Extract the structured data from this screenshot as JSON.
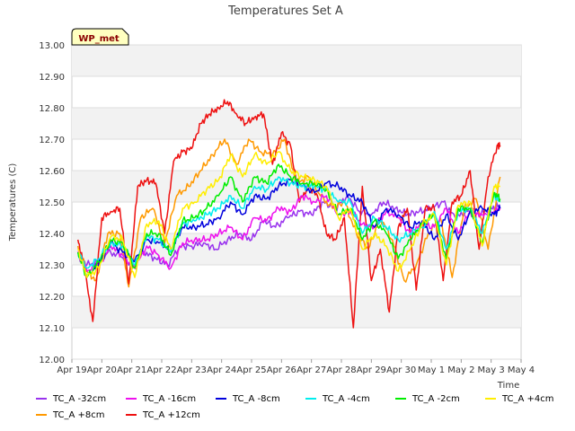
{
  "chart_data": {
    "type": "line",
    "title": "Temperatures Set A",
    "xlabel": "Time",
    "ylabel": "Temperatures (C)",
    "ylim": [
      12.0,
      13.0
    ],
    "yticks": [
      "12.00",
      "12.10",
      "12.20",
      "12.30",
      "12.40",
      "12.50",
      "12.60",
      "12.70",
      "12.80",
      "12.90",
      "13.00"
    ],
    "xticks": [
      "Apr 19",
      "Apr 20",
      "Apr 21",
      "Apr 22",
      "Apr 23",
      "Apr 24",
      "Apr 25",
      "Apr 26",
      "Apr 27",
      "Apr 28",
      "Apr 29",
      "Apr 30",
      "May 1",
      "May 2",
      "May 3",
      "May 4"
    ],
    "grid": true,
    "legend_position": "bottom",
    "station_label": "WP_met",
    "colors": {
      "band": "#ebebeb",
      "plot_bg": "#f2f2f2",
      "station_box": "#ffffc0",
      "station_text": "#8b0000"
    },
    "series": [
      {
        "name": "TC_A -32cm",
        "color": "#9933ee",
        "x": [
          0.2,
          0.5,
          0.9,
          1.2,
          1.6,
          2.0,
          2.4,
          2.8,
          3.2,
          3.6,
          4.0,
          4.4,
          4.8,
          5.2,
          5.6,
          6.0,
          6.4,
          6.8,
          7.2,
          7.6,
          8.0,
          8.4,
          8.8,
          9.2,
          9.6,
          10.0,
          10.4,
          10.8,
          11.2,
          11.6,
          12.0,
          12.4,
          12.8,
          13.2,
          13.6,
          14.0,
          14.3
        ],
        "y": [
          12.33,
          12.3,
          12.31,
          12.34,
          12.33,
          12.3,
          12.34,
          12.32,
          12.3,
          12.36,
          12.36,
          12.37,
          12.35,
          12.38,
          12.4,
          12.38,
          12.44,
          12.42,
          12.45,
          12.47,
          12.46,
          12.5,
          12.48,
          12.52,
          12.47,
          12.46,
          12.5,
          12.48,
          12.46,
          12.47,
          12.48,
          12.5,
          12.45,
          12.47,
          12.46,
          12.48,
          12.49
        ]
      },
      {
        "name": "TC_A +8cm",
        "color": "#ff9900",
        "x": [
          0.2,
          0.5,
          0.8,
          1.2,
          1.6,
          1.9,
          2.3,
          2.7,
          3.1,
          3.5,
          3.9,
          4.3,
          4.7,
          5.1,
          5.5,
          5.9,
          6.3,
          6.7,
          7.1,
          7.5,
          7.9,
          8.3,
          8.7,
          9.1,
          9.5,
          9.9,
          10.3,
          10.7,
          11.1,
          11.5,
          11.9,
          12.3,
          12.7,
          13.1,
          13.5,
          13.9,
          14.3
        ],
        "y": [
          12.36,
          12.28,
          12.25,
          12.4,
          12.4,
          12.23,
          12.45,
          12.48,
          12.37,
          12.52,
          12.55,
          12.6,
          12.65,
          12.7,
          12.62,
          12.7,
          12.66,
          12.65,
          12.7,
          12.56,
          12.58,
          12.52,
          12.48,
          12.5,
          12.4,
          12.35,
          12.45,
          12.38,
          12.25,
          12.3,
          12.4,
          12.45,
          12.26,
          12.48,
          12.51,
          12.35,
          12.58
        ]
      },
      {
        "name": "TC_A +12cm",
        "color": "#ee1111",
        "x": [
          0.2,
          0.4,
          0.7,
          1.0,
          1.3,
          1.6,
          1.9,
          2.2,
          2.5,
          2.8,
          3.1,
          3.4,
          3.7,
          4.0,
          4.3,
          4.6,
          4.9,
          5.2,
          5.5,
          5.8,
          6.1,
          6.4,
          6.7,
          7.0,
          7.3,
          7.6,
          7.9,
          8.2,
          8.5,
          8.8,
          9.1,
          9.4,
          9.7,
          10.0,
          10.3,
          10.6,
          10.9,
          11.2,
          11.5,
          11.8,
          12.1,
          12.4,
          12.7,
          13.0,
          13.3,
          13.6,
          13.9,
          14.2,
          14.3
        ],
        "y": [
          12.38,
          12.3,
          12.12,
          12.45,
          12.47,
          12.48,
          12.24,
          12.55,
          12.57,
          12.56,
          12.4,
          12.63,
          12.66,
          12.67,
          12.75,
          12.78,
          12.8,
          12.82,
          12.78,
          12.75,
          12.77,
          12.78,
          12.62,
          12.72,
          12.68,
          12.5,
          12.55,
          12.52,
          12.4,
          12.38,
          12.45,
          12.1,
          12.55,
          12.25,
          12.35,
          12.15,
          12.42,
          12.48,
          12.22,
          12.48,
          12.48,
          12.25,
          12.5,
          12.52,
          12.6,
          12.35,
          12.58,
          12.68,
          12.68
        ]
      },
      {
        "name": "TC_A -16cm",
        "color": "#ee11ee",
        "x": [
          0.2,
          0.5,
          0.9,
          1.3,
          1.7,
          2.1,
          2.5,
          2.9,
          3.3,
          3.7,
          4.1,
          4.5,
          4.9,
          5.3,
          5.7,
          6.1,
          6.5,
          6.9,
          7.3,
          7.7,
          8.1,
          8.5,
          8.9,
          9.3,
          9.7,
          10.1,
          10.5,
          10.9,
          11.3,
          11.7,
          12.1,
          12.5,
          12.9,
          13.3,
          13.7,
          14.1,
          14.3
        ],
        "y": [
          12.34,
          12.28,
          12.3,
          12.36,
          12.33,
          12.29,
          12.36,
          12.33,
          12.29,
          12.37,
          12.38,
          12.38,
          12.4,
          12.42,
          12.38,
          12.45,
          12.44,
          12.48,
          12.47,
          12.52,
          12.5,
          12.52,
          12.46,
          12.47,
          12.43,
          12.42,
          12.47,
          12.45,
          12.4,
          12.43,
          12.42,
          12.48,
          12.4,
          12.47,
          12.46,
          12.47,
          12.48
        ]
      },
      {
        "name": "TC_A -8cm",
        "color": "#0000dd",
        "x": [
          0.7,
          1.0,
          1.3,
          1.7,
          2.1,
          2.5,
          2.9,
          3.3,
          3.7,
          4.1,
          4.5,
          4.9,
          5.3,
          5.7,
          6.1,
          6.5,
          6.9,
          7.3,
          7.7,
          8.1,
          8.5,
          8.9,
          9.3,
          9.7,
          10.1,
          10.5,
          10.9,
          11.3,
          11.7,
          12.1,
          12.5,
          12.9,
          13.3,
          13.7,
          14.1,
          14.3
        ],
        "y": [
          12.28,
          12.32,
          12.37,
          12.34,
          12.31,
          12.38,
          12.37,
          12.35,
          12.42,
          12.42,
          12.43,
          12.45,
          12.5,
          12.46,
          12.52,
          12.51,
          12.55,
          12.57,
          12.55,
          12.53,
          12.56,
          12.55,
          12.52,
          12.5,
          12.42,
          12.48,
          12.46,
          12.42,
          12.44,
          12.38,
          12.46,
          12.38,
          12.47,
          12.48,
          12.46,
          12.48
        ]
      },
      {
        "name": "TC_A -4cm",
        "color": "#00eeee",
        "x": [
          0.2,
          0.5,
          0.9,
          1.3,
          1.7,
          2.1,
          2.5,
          2.9,
          3.3,
          3.7,
          4.1,
          4.5,
          4.9,
          5.3,
          5.7,
          6.1,
          6.5,
          6.9,
          7.3,
          7.7,
          8.1,
          8.5,
          8.9,
          9.3,
          9.7,
          10.1,
          10.5,
          10.9,
          11.3,
          11.7,
          12.1,
          12.5,
          12.9,
          13.3,
          13.7,
          14.1,
          14.3
        ],
        "y": [
          12.34,
          12.29,
          12.32,
          12.37,
          12.36,
          12.3,
          12.39,
          12.38,
          12.34,
          12.43,
          12.44,
          12.46,
          12.48,
          12.52,
          12.48,
          12.55,
          12.54,
          12.58,
          12.56,
          12.55,
          12.55,
          12.54,
          12.5,
          12.5,
          12.4,
          12.45,
          12.42,
          12.38,
          12.4,
          12.42,
          12.47,
          12.35,
          12.47,
          12.48,
          12.4,
          12.52,
          12.5
        ]
      },
      {
        "name": "TC_A -2cm",
        "color": "#00ee00",
        "x": [
          0.2,
          0.5,
          0.9,
          1.3,
          1.7,
          2.1,
          2.5,
          2.9,
          3.3,
          3.7,
          4.1,
          4.5,
          4.9,
          5.3,
          5.7,
          6.1,
          6.5,
          6.9,
          7.3,
          7.7,
          8.1,
          8.5,
          8.9,
          9.3,
          9.7,
          10.1,
          10.5,
          10.9,
          11.3,
          11.7,
          12.1,
          12.5,
          12.9,
          13.3,
          13.7,
          14.1,
          14.3
        ],
        "y": [
          12.34,
          12.26,
          12.31,
          12.38,
          12.37,
          12.29,
          12.4,
          12.4,
          12.33,
          12.44,
          12.45,
          12.48,
          12.52,
          12.58,
          12.5,
          12.58,
          12.56,
          12.62,
          12.58,
          12.56,
          12.56,
          12.54,
          12.46,
          12.48,
          12.38,
          12.44,
          12.4,
          12.32,
          12.38,
          12.43,
          12.46,
          12.32,
          12.48,
          12.48,
          12.37,
          12.53,
          12.51
        ]
      },
      {
        "name": "TC_A +4cm",
        "color": "#ffee00",
        "x": [
          0.2,
          0.5,
          0.9,
          1.3,
          1.7,
          2.1,
          2.5,
          2.9,
          3.3,
          3.7,
          4.1,
          4.5,
          4.9,
          5.3,
          5.7,
          6.1,
          6.5,
          6.9,
          7.3,
          7.7,
          8.1,
          8.5,
          8.9,
          9.3,
          9.7,
          10.1,
          10.5,
          10.9,
          11.3,
          11.7,
          12.1,
          12.5,
          12.9,
          13.3,
          13.7,
          14.1,
          14.3
        ],
        "y": [
          12.35,
          12.26,
          12.29,
          12.39,
          12.38,
          12.26,
          12.43,
          12.44,
          12.35,
          12.48,
          12.5,
          12.54,
          12.57,
          12.65,
          12.58,
          12.65,
          12.62,
          12.66,
          12.6,
          12.58,
          12.57,
          12.55,
          12.45,
          12.48,
          12.35,
          12.4,
          12.36,
          12.28,
          12.35,
          12.43,
          12.46,
          12.3,
          12.49,
          12.5,
          12.36,
          12.55,
          12.55
        ]
      }
    ]
  }
}
